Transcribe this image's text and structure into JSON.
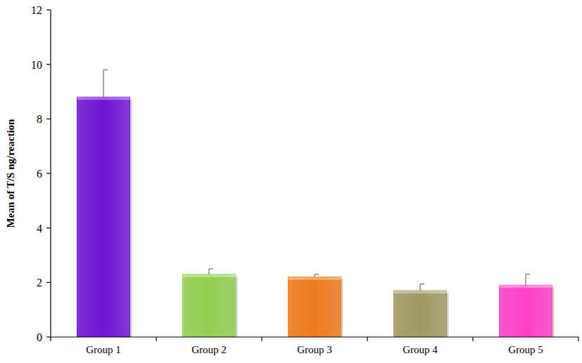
{
  "chart_data": {
    "type": "bar",
    "y_label": "Mean of T/S ng/reaction",
    "categories": [
      "Group 1",
      "Group 2",
      "Group 3",
      "Group 4",
      "Group 5"
    ],
    "values": [
      8.8,
      2.3,
      2.2,
      1.7,
      1.9
    ],
    "errors": [
      1.0,
      0.2,
      0.1,
      0.25,
      0.4
    ],
    "colors": [
      "#7012d4",
      "#92d050",
      "#f07a1c",
      "#a09a62",
      "#ff3fc8"
    ],
    "ylim": [
      0,
      12
    ],
    "yticks": [
      0,
      2,
      4,
      6,
      8,
      10,
      12
    ],
    "grid": false
  }
}
